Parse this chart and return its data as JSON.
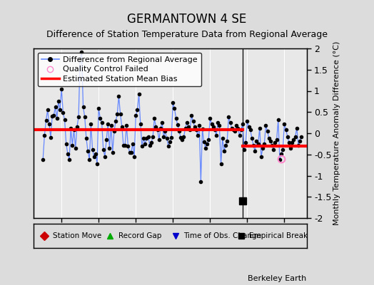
{
  "title": "GERMANTOWN 4 SE",
  "subtitle": "Difference of Station Temperature Data from Regional Average",
  "ylabel": "Monthly Temperature Anomaly Difference (°C)",
  "xlabel_bottom": "Berkeley Earth",
  "ylim": [
    -2,
    2
  ],
  "xlim": [
    2000.5,
    2015.2
  ],
  "xticks": [
    2002,
    2004,
    2006,
    2008,
    2010,
    2012,
    2014
  ],
  "yticks": [
    -2,
    -1.5,
    -1,
    -0.5,
    0,
    0.5,
    1,
    1.5,
    2
  ],
  "bias_before": 0.08,
  "bias_after": -0.3,
  "break_year": 2011.75,
  "empirical_break_x": 2011.75,
  "empirical_break_y": -1.6,
  "qc_fail_x": 2013.83,
  "qc_fail_y": -0.6,
  "background_color": "#dcdcdc",
  "plot_bg_color": "#e8e8e8",
  "line_color": "#6688ff",
  "dot_color": "#000000",
  "bias_color": "#ff0000",
  "qc_color": "#ff88cc",
  "time_series": [
    [
      2001.0,
      -0.62
    ],
    [
      2001.083,
      -0.05
    ],
    [
      2001.167,
      0.3
    ],
    [
      2001.25,
      0.55
    ],
    [
      2001.333,
      0.22
    ],
    [
      2001.417,
      -0.1
    ],
    [
      2001.5,
      0.4
    ],
    [
      2001.583,
      0.42
    ],
    [
      2001.667,
      0.62
    ],
    [
      2001.75,
      0.35
    ],
    [
      2001.833,
      0.75
    ],
    [
      2001.917,
      0.55
    ],
    [
      2002.0,
      1.05
    ],
    [
      2002.083,
      0.48
    ],
    [
      2002.167,
      0.32
    ],
    [
      2002.25,
      -0.25
    ],
    [
      2002.333,
      -0.48
    ],
    [
      2002.417,
      -0.62
    ],
    [
      2002.5,
      0.12
    ],
    [
      2002.583,
      -0.28
    ],
    [
      2002.667,
      0.08
    ],
    [
      2002.75,
      -0.35
    ],
    [
      2002.833,
      0.15
    ],
    [
      2002.917,
      0.38
    ],
    [
      2003.0,
      1.75
    ],
    [
      2003.083,
      1.92
    ],
    [
      2003.167,
      0.62
    ],
    [
      2003.25,
      0.38
    ],
    [
      2003.333,
      -0.12
    ],
    [
      2003.417,
      -0.42
    ],
    [
      2003.5,
      -0.62
    ],
    [
      2003.583,
      0.22
    ],
    [
      2003.667,
      -0.38
    ],
    [
      2003.75,
      -0.55
    ],
    [
      2003.833,
      -0.48
    ],
    [
      2003.917,
      -0.72
    ],
    [
      2004.0,
      0.58
    ],
    [
      2004.083,
      0.35
    ],
    [
      2004.167,
      0.25
    ],
    [
      2004.25,
      -0.38
    ],
    [
      2004.333,
      -0.55
    ],
    [
      2004.417,
      -0.15
    ],
    [
      2004.5,
      0.22
    ],
    [
      2004.583,
      -0.35
    ],
    [
      2004.667,
      0.18
    ],
    [
      2004.75,
      -0.45
    ],
    [
      2004.833,
      0.05
    ],
    [
      2004.917,
      0.28
    ],
    [
      2005.0,
      0.45
    ],
    [
      2005.083,
      0.88
    ],
    [
      2005.167,
      0.45
    ],
    [
      2005.25,
      0.15
    ],
    [
      2005.333,
      -0.28
    ],
    [
      2005.417,
      -0.28
    ],
    [
      2005.5,
      0.18
    ],
    [
      2005.583,
      -0.3
    ],
    [
      2005.667,
      -0.45
    ],
    [
      2005.75,
      -0.45
    ],
    [
      2005.833,
      -0.25
    ],
    [
      2005.917,
      -0.55
    ],
    [
      2006.0,
      0.42
    ],
    [
      2006.083,
      0.55
    ],
    [
      2006.167,
      0.92
    ],
    [
      2006.25,
      0.22
    ],
    [
      2006.333,
      -0.3
    ],
    [
      2006.417,
      -0.12
    ],
    [
      2006.5,
      -0.25
    ],
    [
      2006.583,
      -0.12
    ],
    [
      2006.667,
      -0.08
    ],
    [
      2006.75,
      -0.28
    ],
    [
      2006.833,
      -0.22
    ],
    [
      2006.917,
      -0.08
    ],
    [
      2007.0,
      0.35
    ],
    [
      2007.083,
      0.15
    ],
    [
      2007.167,
      0.08
    ],
    [
      2007.25,
      -0.15
    ],
    [
      2007.333,
      0.12
    ],
    [
      2007.417,
      0.25
    ],
    [
      2007.5,
      -0.08
    ],
    [
      2007.583,
      0.05
    ],
    [
      2007.667,
      -0.12
    ],
    [
      2007.75,
      -0.3
    ],
    [
      2007.833,
      -0.2
    ],
    [
      2007.917,
      -0.1
    ],
    [
      2008.0,
      0.72
    ],
    [
      2008.083,
      0.58
    ],
    [
      2008.167,
      0.35
    ],
    [
      2008.25,
      0.2
    ],
    [
      2008.333,
      0.05
    ],
    [
      2008.417,
      -0.1
    ],
    [
      2008.5,
      -0.15
    ],
    [
      2008.583,
      -0.08
    ],
    [
      2008.667,
      0.12
    ],
    [
      2008.75,
      0.25
    ],
    [
      2008.833,
      0.15
    ],
    [
      2008.917,
      0.08
    ],
    [
      2009.0,
      0.42
    ],
    [
      2009.083,
      0.28
    ],
    [
      2009.167,
      0.15
    ],
    [
      2009.25,
      0.08
    ],
    [
      2009.333,
      -0.05
    ],
    [
      2009.417,
      0.18
    ],
    [
      2009.5,
      -1.15
    ],
    [
      2009.583,
      0.1
    ],
    [
      2009.667,
      -0.2
    ],
    [
      2009.75,
      -0.35
    ],
    [
      2009.833,
      -0.25
    ],
    [
      2009.917,
      -0.15
    ],
    [
      2010.0,
      0.35
    ],
    [
      2010.083,
      0.22
    ],
    [
      2010.167,
      0.15
    ],
    [
      2010.25,
      0.08
    ],
    [
      2010.333,
      -0.05
    ],
    [
      2010.417,
      0.25
    ],
    [
      2010.5,
      0.18
    ],
    [
      2010.583,
      -0.72
    ],
    [
      2010.667,
      -0.12
    ],
    [
      2010.75,
      -0.42
    ],
    [
      2010.833,
      -0.28
    ],
    [
      2010.917,
      -0.18
    ],
    [
      2011.0,
      0.38
    ],
    [
      2011.083,
      0.25
    ],
    [
      2011.167,
      0.12
    ],
    [
      2011.25,
      0.08
    ],
    [
      2011.333,
      0.05
    ],
    [
      2011.417,
      0.18
    ],
    [
      2011.5,
      0.12
    ],
    [
      2011.583,
      -0.05
    ],
    [
      2011.667,
      0.08
    ],
    [
      2011.75,
      0.22
    ],
    [
      2011.833,
      -0.38
    ],
    [
      2011.917,
      -0.22
    ],
    [
      2012.0,
      0.28
    ],
    [
      2012.083,
      0.15
    ],
    [
      2012.167,
      0.08
    ],
    [
      2012.25,
      -0.12
    ],
    [
      2012.333,
      -0.28
    ],
    [
      2012.417,
      -0.42
    ],
    [
      2012.5,
      -0.18
    ],
    [
      2012.583,
      -0.25
    ],
    [
      2012.667,
      0.12
    ],
    [
      2012.75,
      -0.55
    ],
    [
      2012.833,
      -0.35
    ],
    [
      2012.917,
      -0.25
    ],
    [
      2013.0,
      0.18
    ],
    [
      2013.083,
      0.05
    ],
    [
      2013.167,
      -0.12
    ],
    [
      2013.25,
      -0.18
    ],
    [
      2013.333,
      -0.28
    ],
    [
      2013.417,
      -0.38
    ],
    [
      2013.5,
      -0.22
    ],
    [
      2013.583,
      -0.15
    ],
    [
      2013.667,
      0.32
    ],
    [
      2013.75,
      -0.62
    ],
    [
      2013.833,
      -0.48
    ],
    [
      2013.917,
      -0.38
    ],
    [
      2014.0,
      0.22
    ],
    [
      2014.083,
      0.08
    ],
    [
      2014.167,
      -0.08
    ],
    [
      2014.25,
      -0.22
    ],
    [
      2014.333,
      -0.35
    ],
    [
      2014.417,
      -0.22
    ],
    [
      2014.5,
      -0.15
    ],
    [
      2014.583,
      -0.08
    ],
    [
      2014.667,
      0.12
    ],
    [
      2014.75,
      -0.28
    ],
    [
      2014.833,
      -0.18
    ],
    [
      2014.917,
      -0.08
    ]
  ]
}
